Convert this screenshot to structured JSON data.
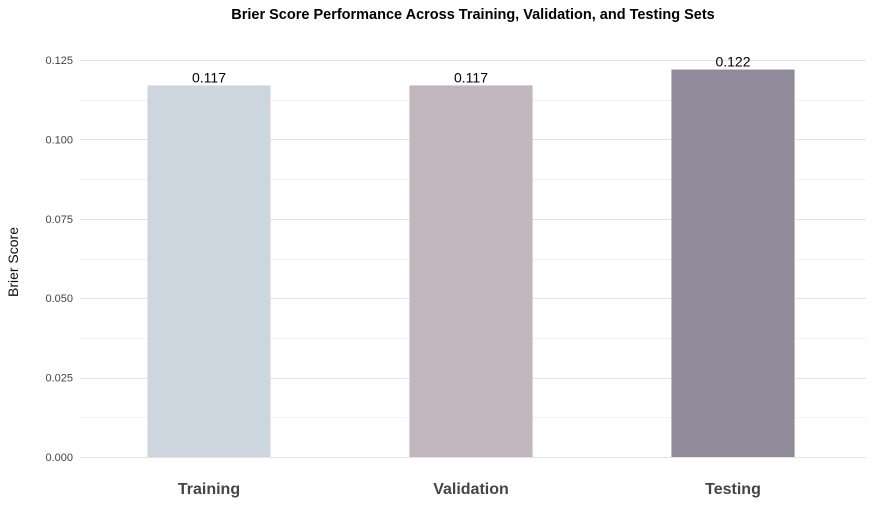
{
  "chart_data": {
    "type": "bar",
    "title": "Brier Score Performance Across Training, Validation, and Testing Sets",
    "xlabel": "",
    "ylabel": "Brier Score",
    "categories": [
      "Training",
      "Validation",
      "Testing"
    ],
    "values": [
      0.117,
      0.117,
      0.122
    ],
    "value_labels": [
      "0.117",
      "0.117",
      "0.122"
    ],
    "colors": [
      "#cdd6df",
      "#c1b6bb",
      "#8f8b9b"
    ],
    "ylim": [
      0,
      0.125
    ],
    "yticks": [
      0,
      0.025,
      0.05,
      0.075,
      0.1,
      0.125
    ],
    "ytick_labels": [
      "0.000",
      "0.025",
      "0.050",
      "0.075",
      "0.100",
      "0.125"
    ],
    "grid": true,
    "legend": "none"
  }
}
